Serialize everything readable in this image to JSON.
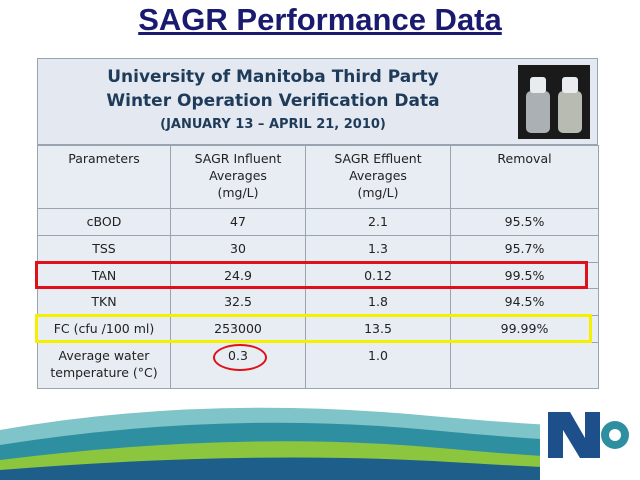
{
  "header": {
    "title": "SAGR Performance Data"
  },
  "panel": {
    "subtitle_lines": [
      "University of Manitoba Third Party",
      "Winter Operation Verification Data"
    ],
    "date_range": "(JANUARY 13 – APRIL 21, 2010)"
  },
  "table": {
    "header": [
      [
        "Parameters"
      ],
      [
        "SAGR Influent",
        "Averages",
        "(mg/L)"
      ],
      [
        "SAGR Effluent",
        "Averages",
        "(mg/L)"
      ],
      [
        "Removal"
      ]
    ],
    "rows": [
      [
        [
          "cBOD"
        ],
        [
          "47"
        ],
        [
          "2.1"
        ],
        [
          "95.5%"
        ]
      ],
      [
        [
          "TSS"
        ],
        [
          "30"
        ],
        [
          "1.3"
        ],
        [
          "95.7%"
        ]
      ],
      [
        [
          "TAN"
        ],
        [
          "24.9"
        ],
        [
          "0.12"
        ],
        [
          "99.5%"
        ]
      ],
      [
        [
          "TKN"
        ],
        [
          "32.5"
        ],
        [
          "1.8"
        ],
        [
          "94.5%"
        ]
      ],
      [
        [
          "FC (cfu /100 ml)"
        ],
        [
          "253000"
        ],
        [
          "13.5"
        ],
        [
          "99.99%"
        ]
      ],
      [
        [
          "Average water",
          "temperature (°C)"
        ],
        [
          "0.3"
        ],
        [
          "1.0"
        ]
      ]
    ]
  }
}
